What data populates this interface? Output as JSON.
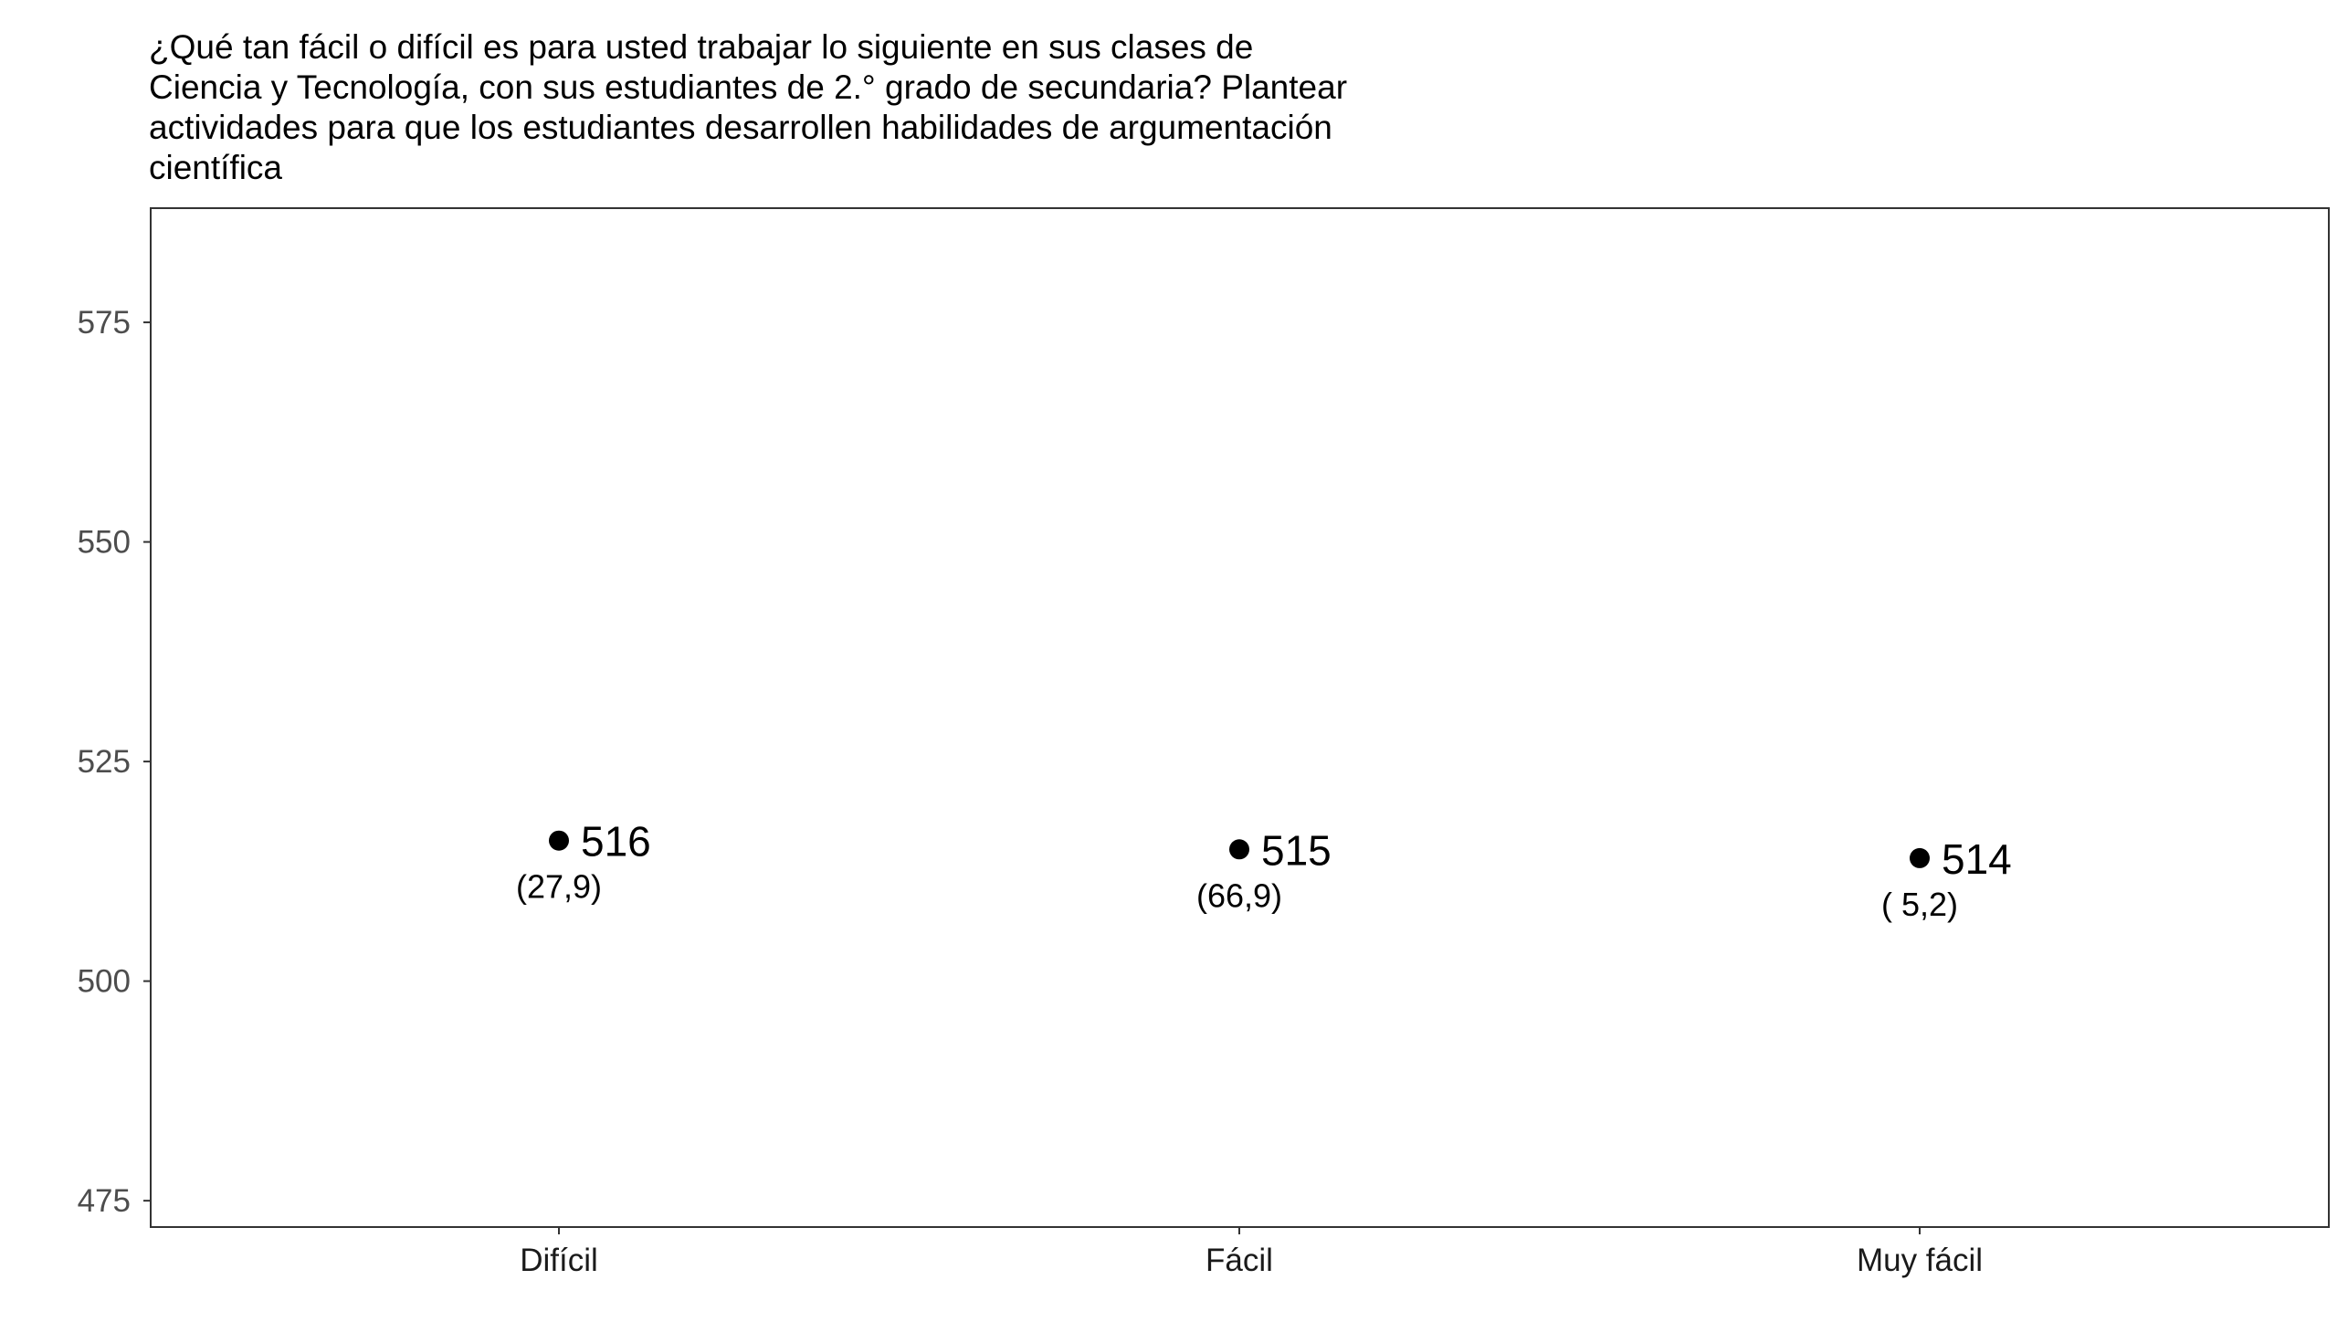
{
  "chart_data": {
    "type": "scatter",
    "title_lines": [
      "¿Qué tan fácil o difícil es para usted trabajar lo siguiente en sus clases de",
      "Ciencia y Tecnología, con sus estudiantes de 2.° grado de secundaria? Plantear",
      "actividades para que los estudiantes desarrollen habilidades de argumentación",
      "científica"
    ],
    "xlabel": "",
    "ylabel": "",
    "categories": [
      "Difícil",
      "Fácil",
      "Muy fácil"
    ],
    "values": [
      516,
      515,
      514
    ],
    "value_labels": [
      "516",
      "515",
      "514"
    ],
    "percent_labels": [
      "(27,9)",
      "(66,9)",
      "( 5,2)"
    ],
    "yticks": [
      475,
      500,
      525,
      550,
      575
    ],
    "ylim": [
      472,
      588
    ],
    "grid": false,
    "legend": "none",
    "point_color": "#000000"
  }
}
